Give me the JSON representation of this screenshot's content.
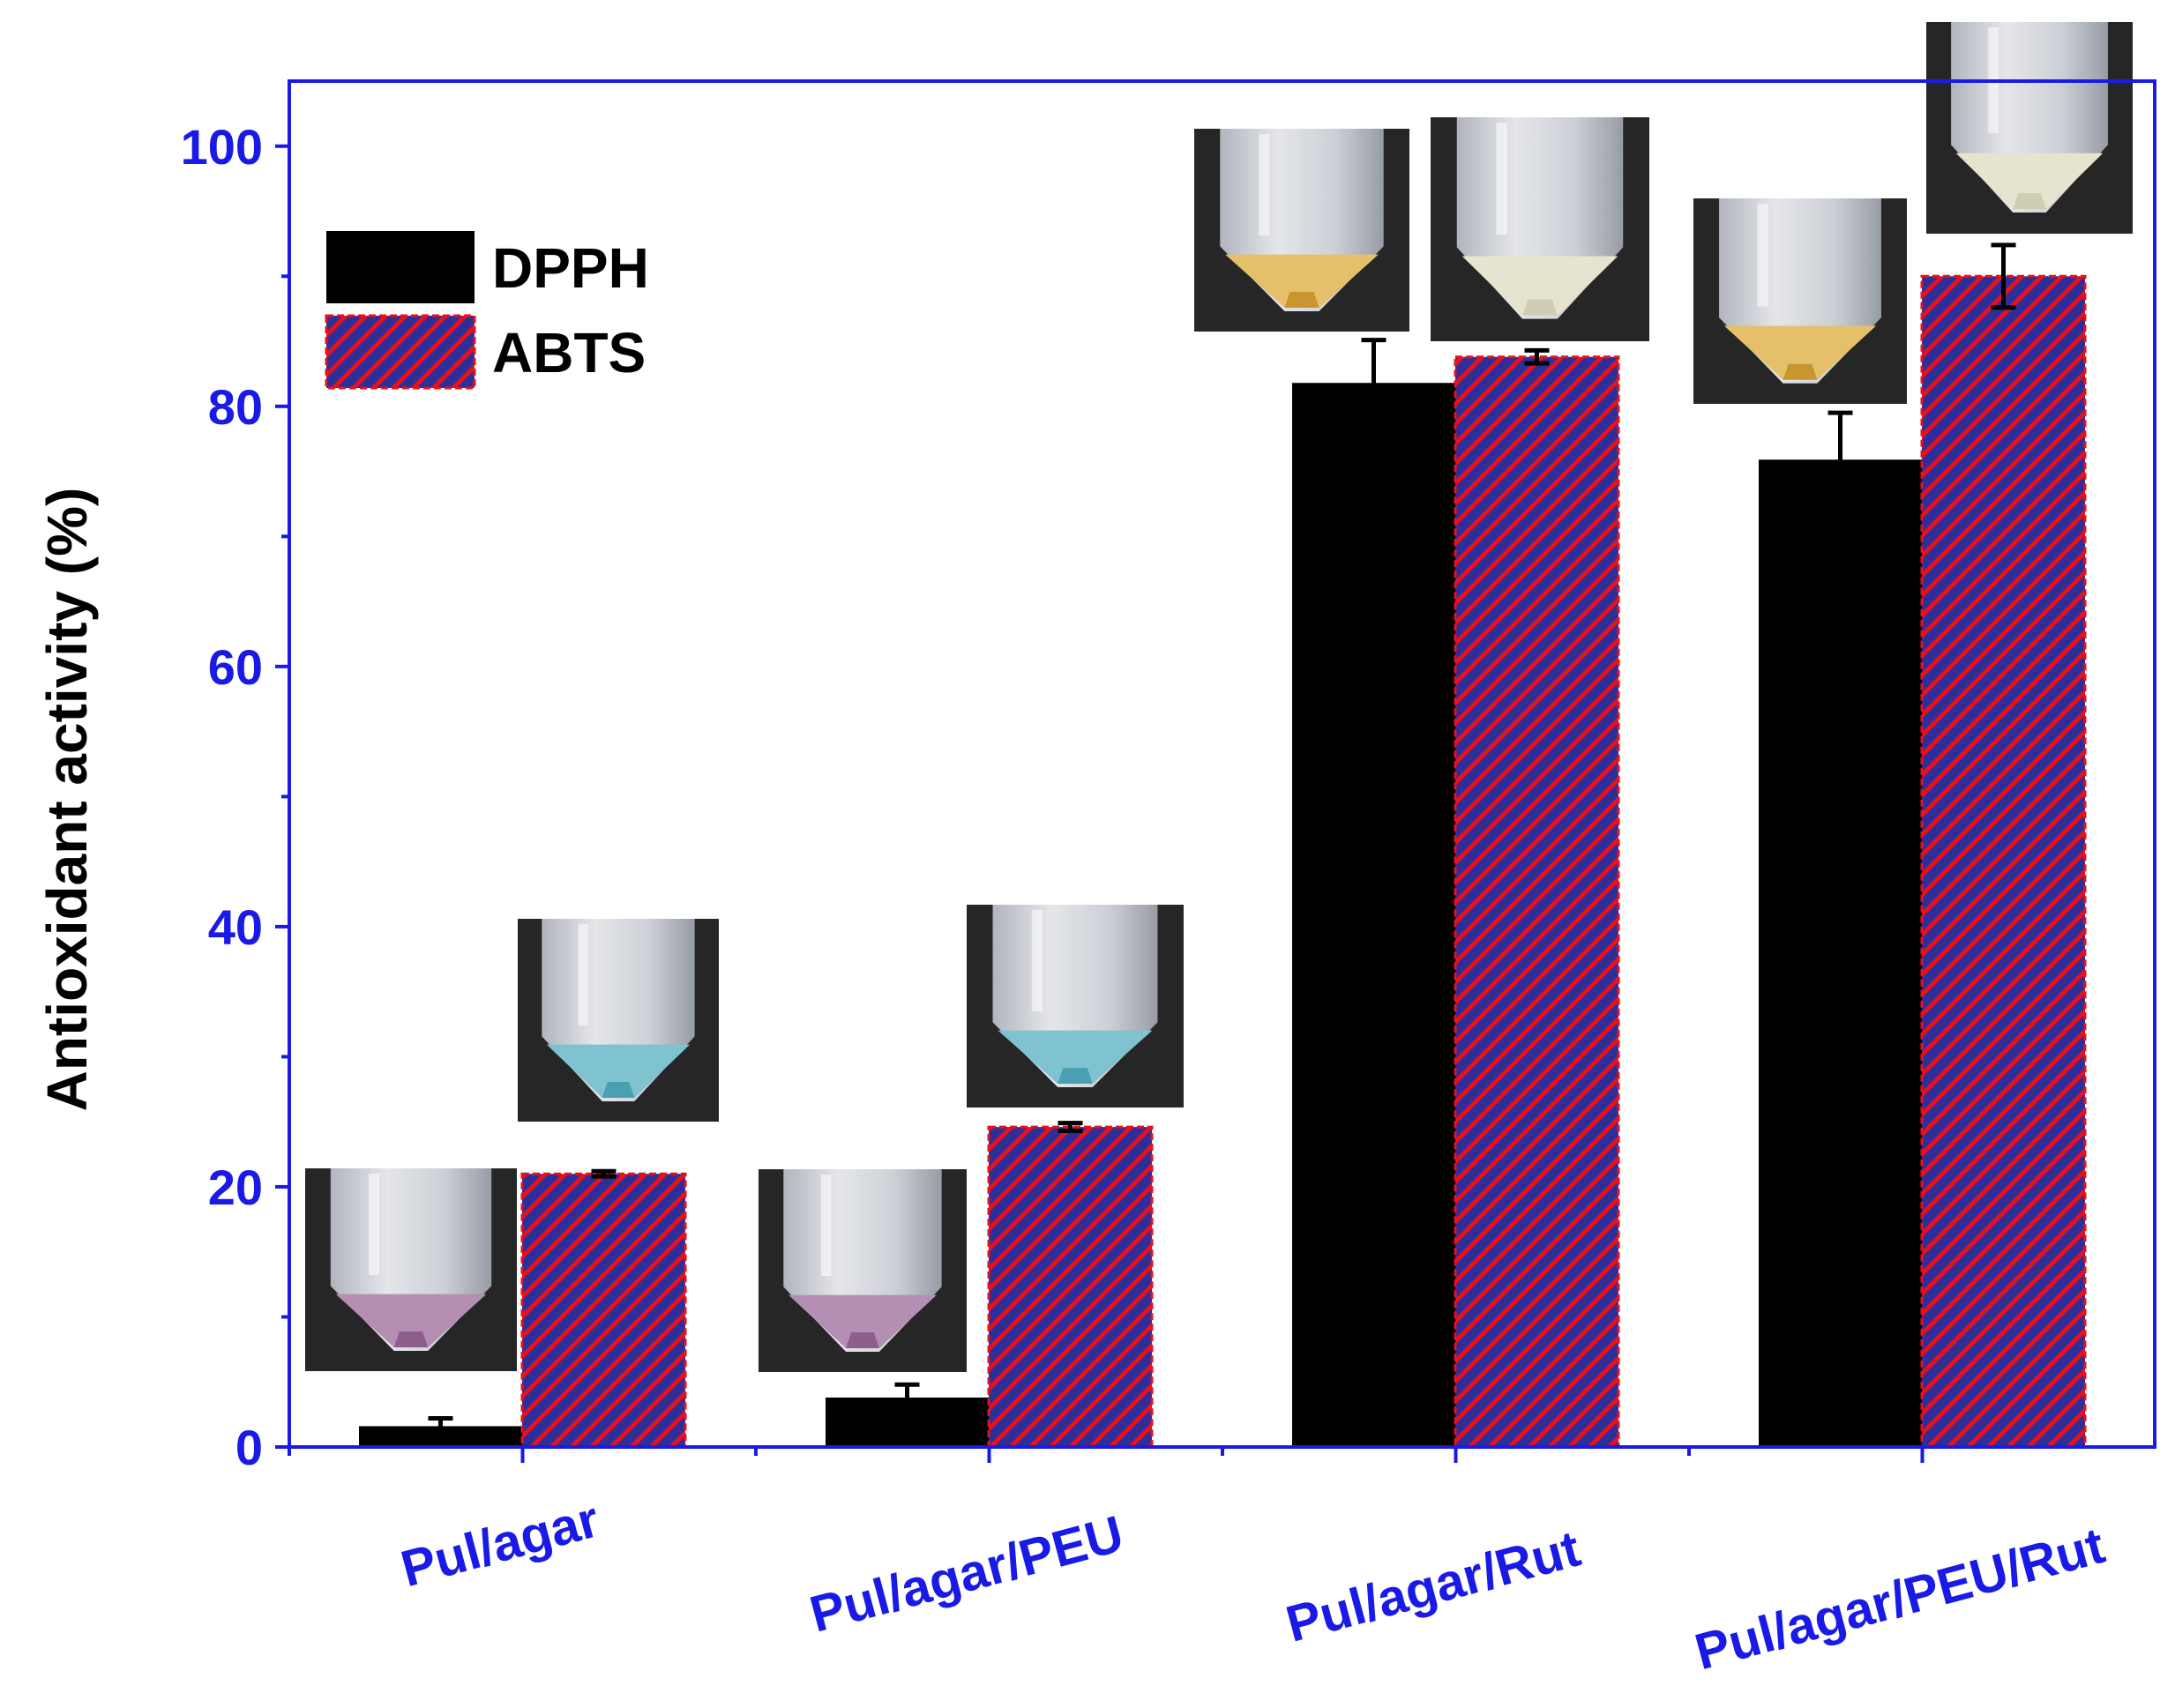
{
  "chart_data": {
    "type": "bar",
    "title": "",
    "xlabel": "",
    "ylabel": "Antioxidant activity (%)",
    "ylim": [
      0,
      105
    ],
    "yticks": [
      "0",
      "20",
      "40",
      "60",
      "80",
      "100"
    ],
    "grid": false,
    "legend_position": "top-left",
    "categories": [
      "Pul/agar",
      "Pul/agar/PEU",
      "Pul/agar/Rut",
      "Pul/agar/PEU/Rut"
    ],
    "series": [
      {
        "name": "DPPH",
        "values": [
          1.6,
          3.8,
          81.8,
          75.9
        ],
        "errors": [
          0.6,
          1.0,
          3.3,
          3.6
        ],
        "color": "#000000",
        "pattern": "solid"
      },
      {
        "name": "ABTS",
        "values": [
          21.0,
          24.6,
          83.8,
          90.0
        ],
        "errors": [
          0.2,
          0.3,
          0.5,
          2.4
        ],
        "color": "#2e2e9a",
        "edge_color": "#e8101a",
        "pattern": "hatch"
      }
    ],
    "colors": {
      "axis": "#1a1ae6",
      "tick_text": "#1a1ae6"
    },
    "inset_photos": [
      {
        "category": "Pul/agar",
        "series": "DPPH",
        "liquid": "purple"
      },
      {
        "category": "Pul/agar",
        "series": "ABTS",
        "liquid": "blue"
      },
      {
        "category": "Pul/agar/PEU",
        "series": "DPPH",
        "liquid": "purple"
      },
      {
        "category": "Pul/agar/PEU",
        "series": "ABTS",
        "liquid": "blue"
      },
      {
        "category": "Pul/agar/Rut",
        "series": "DPPH",
        "liquid": "yellow"
      },
      {
        "category": "Pul/agar/Rut",
        "series": "ABTS",
        "liquid": "pale"
      },
      {
        "category": "Pul/agar/PEU/Rut",
        "series": "DPPH",
        "liquid": "yellow"
      },
      {
        "category": "Pul/agar/PEU/Rut",
        "series": "ABTS",
        "liquid": "pale"
      }
    ]
  }
}
